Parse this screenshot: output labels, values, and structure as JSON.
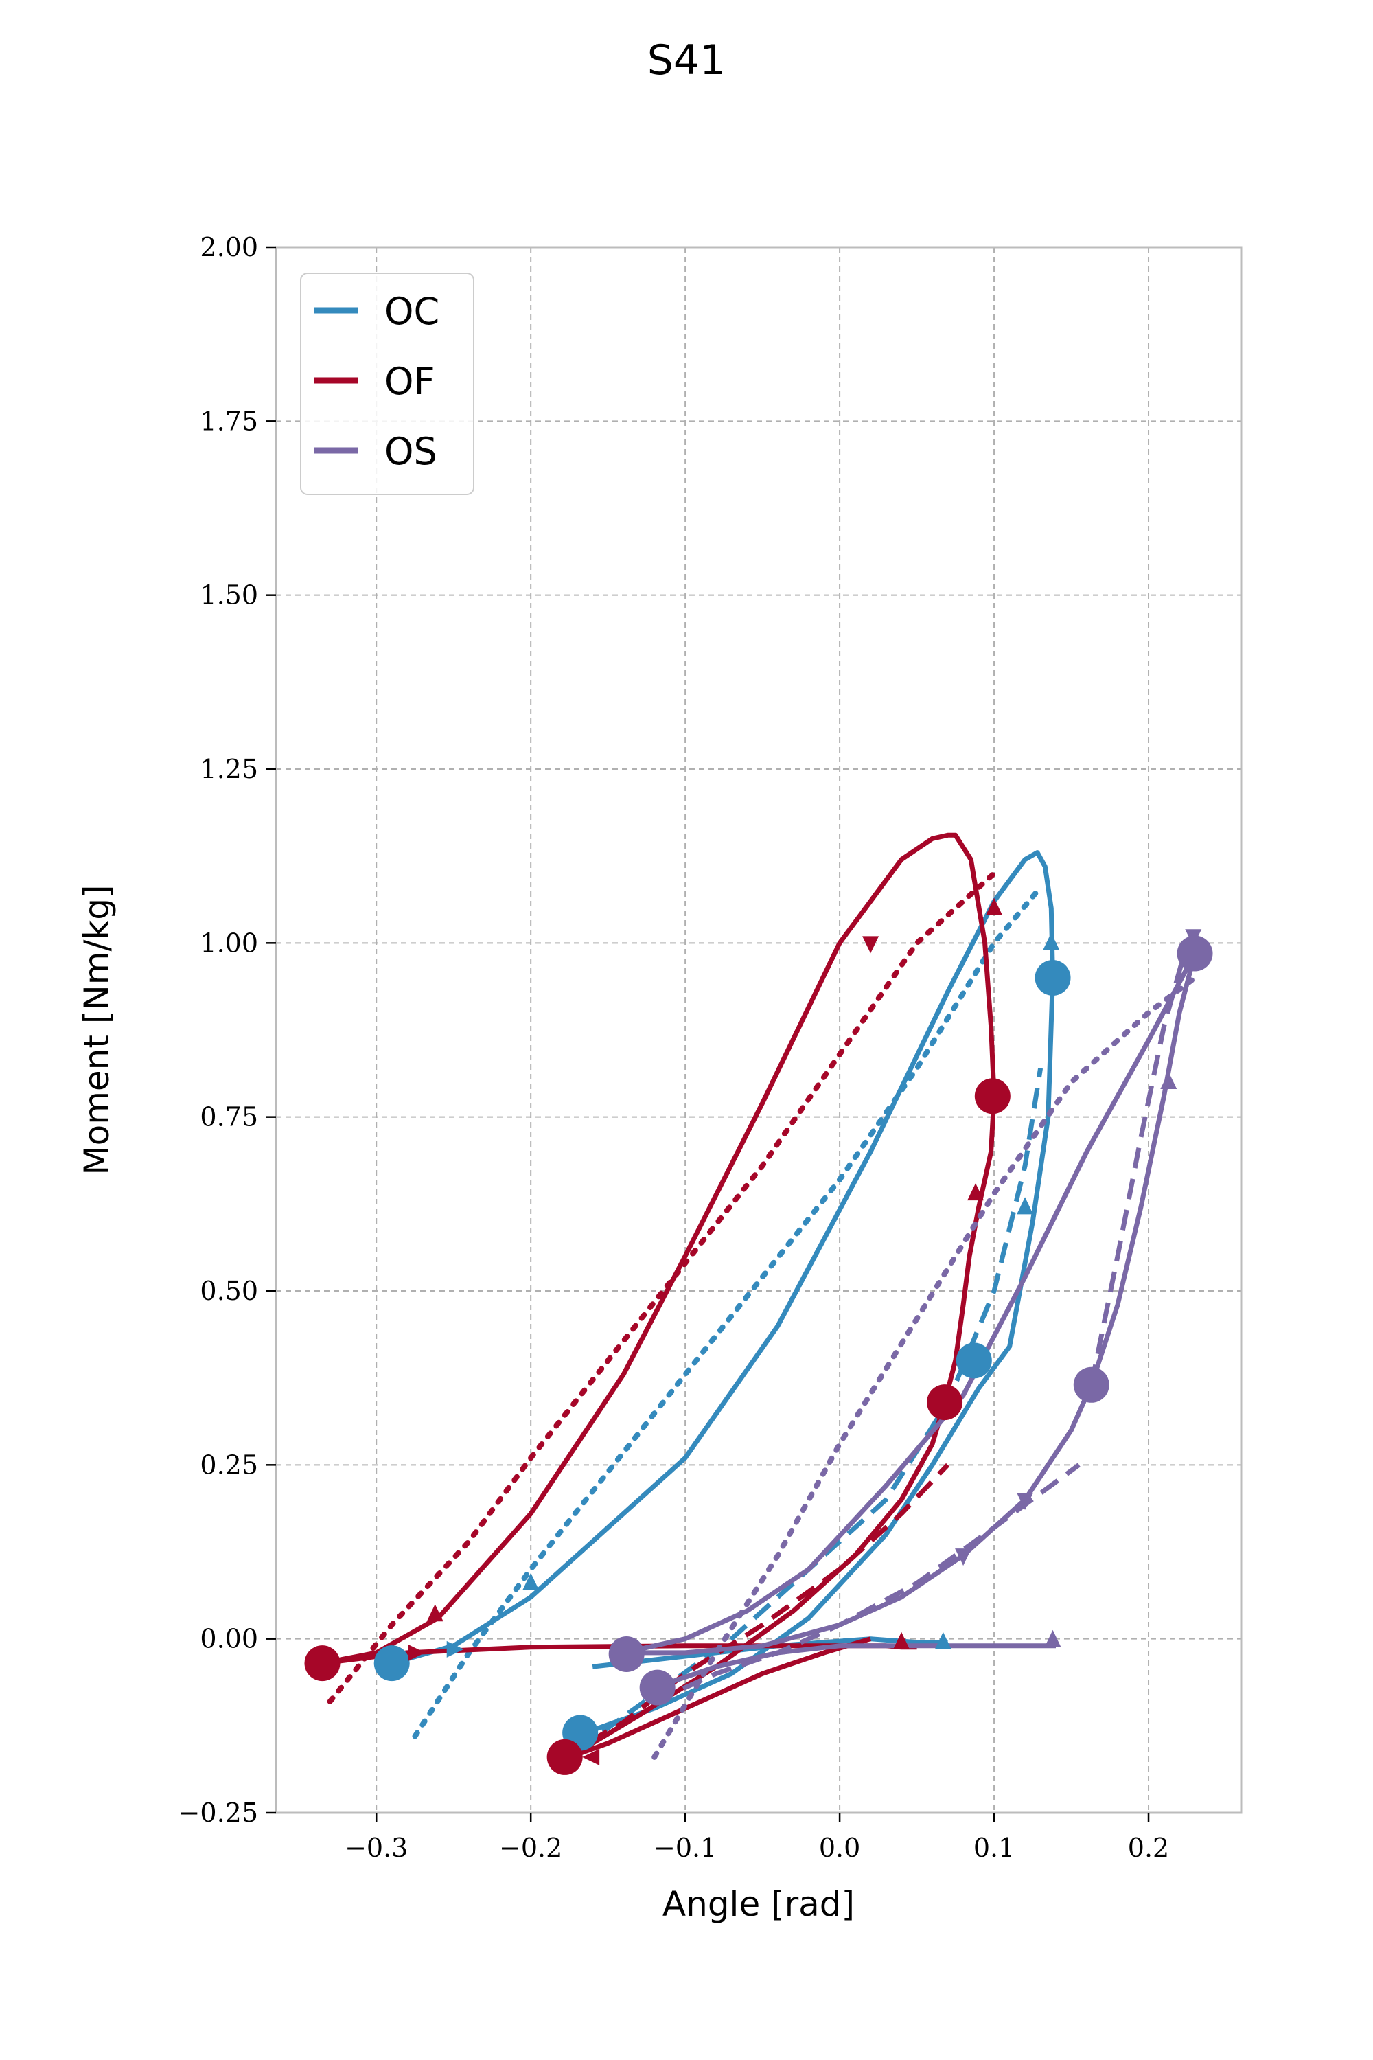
{
  "chart_data": {
    "type": "line",
    "title": "S41",
    "xlabel": "Angle [rad]",
    "ylabel": "Moment [Nm/kg]",
    "xlim": [
      -0.365,
      0.26
    ],
    "ylim": [
      -0.25,
      2.0
    ],
    "x_ticks": [
      -0.3,
      -0.2,
      -0.1,
      0.0,
      0.1,
      0.2
    ],
    "x_tick_labels": [
      "−0.3",
      "−0.2",
      "−0.1",
      "0.0",
      "0.1",
      "0.2"
    ],
    "y_ticks": [
      -0.25,
      0.0,
      0.25,
      0.5,
      0.75,
      1.0,
      1.25,
      1.5,
      1.75,
      2.0
    ],
    "y_tick_labels": [
      "−0.25",
      "0.00",
      "0.25",
      "0.50",
      "0.75",
      "1.00",
      "1.25",
      "1.50",
      "1.75",
      "2.00"
    ],
    "grid": true,
    "legend_position": "top-left",
    "legend": [
      {
        "label": "OC",
        "color": "#348ABD"
      },
      {
        "label": "OF",
        "color": "#A60628"
      },
      {
        "label": "OS",
        "color": "#7A68A6"
      }
    ],
    "series": [
      {
        "name": "OC",
        "color": "#348ABD",
        "style": "solid",
        "x": [
          -0.29,
          -0.25,
          -0.2,
          -0.16,
          -0.1,
          -0.04,
          0.02,
          0.07,
          0.1,
          0.12,
          0.128,
          0.133,
          0.137,
          0.138,
          0.135,
          0.125,
          0.11,
          0.09,
          0.06,
          0.03,
          -0.02,
          -0.07,
          -0.12,
          -0.165
        ],
        "y": [
          -0.035,
          -0.01,
          0.06,
          0.14,
          0.26,
          0.45,
          0.7,
          0.93,
          1.06,
          1.12,
          1.13,
          1.11,
          1.05,
          0.95,
          0.75,
          0.6,
          0.42,
          0.36,
          0.25,
          0.15,
          0.03,
          -0.05,
          -0.1,
          -0.135
        ]
      },
      {
        "name": "OC",
        "color": "#348ABD",
        "style": "dotted",
        "x": [
          -0.275,
          -0.24,
          -0.2,
          -0.15,
          -0.1,
          -0.05,
          0.0,
          0.05,
          0.1,
          0.13
        ],
        "y": [
          -0.14,
          -0.02,
          0.1,
          0.24,
          0.38,
          0.52,
          0.66,
          0.82,
          1.0,
          1.08
        ]
      },
      {
        "name": "OC",
        "color": "#348ABD",
        "style": "dashed",
        "x": [
          -0.17,
          -0.12,
          -0.07,
          -0.02,
          0.03,
          0.07,
          0.1,
          0.12,
          0.13
        ],
        "y": [
          -0.16,
          -0.08,
          0.0,
          0.1,
          0.2,
          0.34,
          0.5,
          0.68,
          0.82
        ]
      },
      {
        "name": "OC",
        "color": "#348ABD",
        "style": "solid",
        "x": [
          -0.16,
          -0.12,
          -0.08,
          -0.04,
          -0.01,
          0.02,
          0.05,
          0.07
        ],
        "y": [
          -0.04,
          -0.03,
          -0.02,
          -0.01,
          -0.005,
          0.0,
          -0.005,
          -0.005
        ]
      },
      {
        "name": "OF",
        "color": "#A60628",
        "style": "solid",
        "x": [
          -0.335,
          -0.3,
          -0.26,
          -0.2,
          -0.14,
          -0.1,
          -0.05,
          0.0,
          0.04,
          0.06,
          0.07,
          0.075,
          0.085,
          0.094,
          0.098,
          0.1,
          0.098,
          0.09,
          0.084,
          0.08,
          0.075,
          0.068
        ],
        "y": [
          -0.035,
          -0.02,
          0.03,
          0.18,
          0.38,
          0.55,
          0.77,
          1.0,
          1.12,
          1.15,
          1.155,
          1.155,
          1.12,
          1.0,
          0.88,
          0.78,
          0.7,
          0.62,
          0.55,
          0.48,
          0.4,
          0.34
        ]
      },
      {
        "name": "OF",
        "color": "#A60628",
        "style": "dotted",
        "x": [
          -0.33,
          -0.29,
          -0.24,
          -0.2,
          -0.15,
          -0.1,
          -0.05,
          0.0,
          0.05,
          0.1
        ],
        "y": [
          -0.09,
          0.02,
          0.14,
          0.26,
          0.4,
          0.54,
          0.68,
          0.84,
          1.0,
          1.1
        ]
      },
      {
        "name": "OF",
        "color": "#A60628",
        "style": "solid",
        "x": [
          -0.335,
          -0.28,
          -0.2,
          -0.1,
          0.0,
          0.03,
          0.04,
          0.05
        ],
        "y": [
          -0.035,
          -0.02,
          -0.012,
          -0.01,
          -0.01,
          -0.01,
          -0.012,
          -0.012
        ]
      },
      {
        "name": "OF",
        "color": "#A60628",
        "style": "solid",
        "x": [
          -0.175,
          -0.13,
          -0.08,
          -0.03,
          0.01,
          0.04,
          0.06,
          0.068
        ],
        "y": [
          -0.17,
          -0.11,
          -0.04,
          0.04,
          0.12,
          0.2,
          0.28,
          0.34
        ]
      },
      {
        "name": "OF",
        "color": "#A60628",
        "style": "solid",
        "x": [
          -0.175,
          -0.15,
          -0.1,
          -0.05,
          -0.01,
          0.02
        ],
        "y": [
          -0.17,
          -0.15,
          -0.1,
          -0.05,
          -0.02,
          0.0
        ]
      },
      {
        "name": "OF",
        "color": "#A60628",
        "style": "dashed",
        "x": [
          -0.18,
          -0.14,
          -0.1,
          -0.05,
          0.0,
          0.04,
          0.07
        ],
        "y": [
          -0.17,
          -0.12,
          -0.05,
          0.02,
          0.1,
          0.18,
          0.25
        ]
      },
      {
        "name": "OS",
        "color": "#7A68A6",
        "style": "solid",
        "x": [
          -0.14,
          -0.1,
          -0.06,
          -0.02,
          0.03,
          0.08,
          0.12,
          0.16,
          0.2,
          0.23
        ],
        "y": [
          -0.02,
          0.0,
          0.04,
          0.1,
          0.22,
          0.35,
          0.52,
          0.7,
          0.86,
          0.985
        ]
      },
      {
        "name": "OS",
        "color": "#7A68A6",
        "style": "solid",
        "x": [
          0.23,
          0.22,
          0.21,
          0.195,
          0.18,
          0.163,
          0.15,
          0.12,
          0.08,
          0.04,
          0.0,
          -0.05,
          -0.1,
          -0.14
        ],
        "y": [
          0.985,
          0.9,
          0.78,
          0.62,
          0.48,
          0.365,
          0.3,
          0.2,
          0.12,
          0.06,
          0.02,
          -0.01,
          -0.02,
          -0.02
        ]
      },
      {
        "name": "OS",
        "color": "#7A68A6",
        "style": "dotted",
        "x": [
          -0.12,
          -0.08,
          -0.04,
          0.0,
          0.05,
          0.1,
          0.15,
          0.2,
          0.23
        ],
        "y": [
          -0.17,
          -0.02,
          0.12,
          0.28,
          0.46,
          0.64,
          0.8,
          0.9,
          0.95
        ]
      },
      {
        "name": "OS",
        "color": "#7A68A6",
        "style": "dashed",
        "x": [
          -0.12,
          -0.08,
          -0.04,
          0.0,
          0.05,
          0.1,
          0.155
        ],
        "y": [
          -0.09,
          -0.05,
          -0.02,
          0.02,
          0.08,
          0.16,
          0.25
        ]
      },
      {
        "name": "OS",
        "color": "#7A68A6",
        "style": "dashed",
        "x": [
          0.163,
          0.18,
          0.195,
          0.21,
          0.225
        ],
        "y": [
          0.365,
          0.55,
          0.72,
          0.88,
          1.0
        ]
      },
      {
        "name": "OS",
        "color": "#7A68A6",
        "style": "solid",
        "x": [
          -0.12,
          -0.08,
          -0.04,
          0.0,
          0.05,
          0.1,
          0.14
        ],
        "y": [
          -0.07,
          -0.04,
          -0.02,
          -0.01,
          -0.01,
          -0.01,
          -0.01
        ]
      }
    ],
    "markers": [
      {
        "x": -0.29,
        "y": -0.035,
        "color": "#348ABD"
      },
      {
        "x": 0.138,
        "y": 0.95,
        "color": "#348ABD"
      },
      {
        "x": 0.087,
        "y": 0.4,
        "color": "#348ABD"
      },
      {
        "x": -0.168,
        "y": -0.135,
        "color": "#348ABD"
      },
      {
        "x": -0.335,
        "y": -0.035,
        "color": "#A60628"
      },
      {
        "x": 0.099,
        "y": 0.78,
        "color": "#A60628"
      },
      {
        "x": 0.068,
        "y": 0.34,
        "color": "#A60628"
      },
      {
        "x": -0.178,
        "y": -0.17,
        "color": "#A60628"
      },
      {
        "x": -0.138,
        "y": -0.022,
        "color": "#7A68A6"
      },
      {
        "x": 0.23,
        "y": 0.985,
        "color": "#7A68A6"
      },
      {
        "x": 0.163,
        "y": 0.365,
        "color": "#7A68A6"
      },
      {
        "x": -0.118,
        "y": -0.07,
        "color": "#7A68A6"
      }
    ],
    "arrows": [
      {
        "x": 0.137,
        "y": 1.0,
        "dir": "up",
        "color": "#348ABD"
      },
      {
        "x": 0.12,
        "y": 0.62,
        "dir": "up",
        "color": "#348ABD"
      },
      {
        "x": -0.2,
        "y": 0.08,
        "dir": "up",
        "color": "#348ABD"
      },
      {
        "x": -0.25,
        "y": -0.015,
        "dir": "right",
        "color": "#348ABD"
      },
      {
        "x": 0.067,
        "y": -0.005,
        "dir": "up",
        "color": "#348ABD"
      },
      {
        "x": 0.1,
        "y": 1.05,
        "dir": "up",
        "color": "#A60628"
      },
      {
        "x": 0.088,
        "y": 0.64,
        "dir": "up",
        "color": "#A60628"
      },
      {
        "x": 0.02,
        "y": 1.0,
        "dir": "down",
        "color": "#A60628"
      },
      {
        "x": -0.262,
        "y": 0.035,
        "dir": "up",
        "color": "#A60628"
      },
      {
        "x": -0.275,
        "y": -0.02,
        "dir": "right",
        "color": "#A60628"
      },
      {
        "x": 0.04,
        "y": -0.005,
        "dir": "up",
        "color": "#A60628"
      },
      {
        "x": -0.16,
        "y": -0.17,
        "dir": "left",
        "color": "#A60628"
      },
      {
        "x": 0.229,
        "y": 1.01,
        "dir": "down",
        "color": "#7A68A6"
      },
      {
        "x": 0.213,
        "y": 0.8,
        "dir": "up",
        "color": "#7A68A6"
      },
      {
        "x": 0.12,
        "y": 0.2,
        "dir": "down",
        "color": "#7A68A6"
      },
      {
        "x": 0.08,
        "y": 0.12,
        "dir": "down",
        "color": "#7A68A6"
      },
      {
        "x": 0.138,
        "y": -0.002,
        "dir": "up",
        "color": "#7A68A6"
      }
    ]
  }
}
